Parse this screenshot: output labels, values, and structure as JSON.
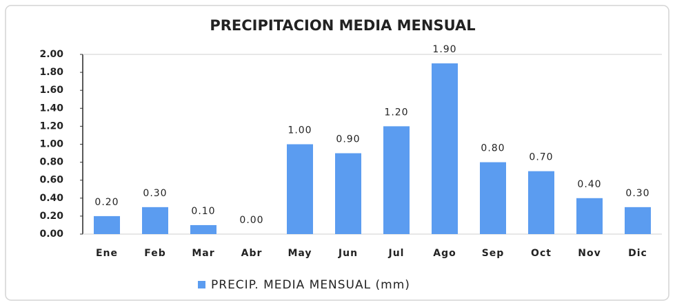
{
  "chart_data": {
    "type": "bar",
    "title": "PRECIPITACION MEDIA MENSUAL",
    "categories": [
      "Ene",
      "Feb",
      "Mar",
      "Abr",
      "May",
      "Jun",
      "Jul",
      "Ago",
      "Sep",
      "Oct",
      "Nov",
      "Dic"
    ],
    "series": [
      {
        "name": "PRECIP.  MEDIA MENSUAL (mm)",
        "color": "#5b9cf0",
        "values": [
          0.2,
          0.3,
          0.1,
          0,
          1,
          0.9,
          1.2,
          1.9,
          0.8,
          0.7,
          0.4,
          0.3
        ],
        "value_labels": [
          "0.20",
          "0.30",
          "0.10",
          "0.00",
          "1.00",
          "0.90",
          "1.20",
          "1.90",
          "0.80",
          "0.70",
          "0.40",
          "0.30"
        ]
      }
    ],
    "ylim": [
      0,
      2
    ],
    "yticks": [
      {
        "value": 0,
        "label": "0.00"
      },
      {
        "value": 0.2,
        "label": "0.20"
      },
      {
        "value": 0.4,
        "label": "0.40"
      },
      {
        "value": 0.6,
        "label": "0.60"
      },
      {
        "value": 0.8,
        "label": "0.80"
      },
      {
        "value": 1,
        "label": "1.00"
      },
      {
        "value": 1.2,
        "label": "1.20"
      },
      {
        "value": 1.4,
        "label": "1.40"
      },
      {
        "value": 1.6,
        "label": "1.60"
      },
      {
        "value": 1.8,
        "label": "1.80"
      },
      {
        "value": 2,
        "label": "2.00"
      }
    ],
    "grid": false,
    "legend": "bottom"
  }
}
